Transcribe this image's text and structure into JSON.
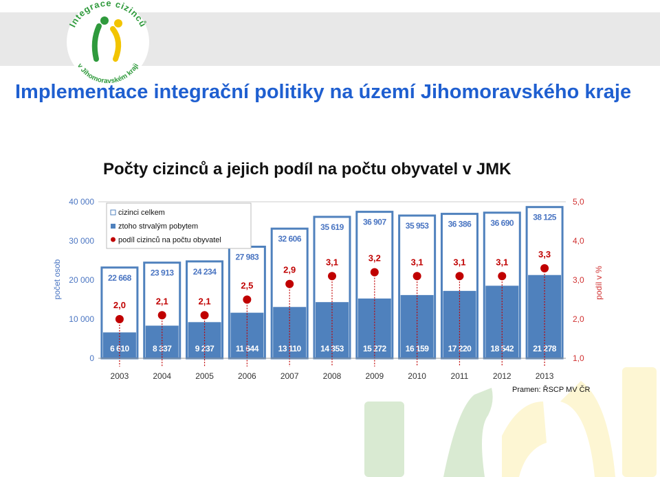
{
  "logo": {
    "text_top": "Integrace cizinců",
    "text_bottom": "v Jihomoravském kraji"
  },
  "colors": {
    "title": "#1f5fd0",
    "bar_total": "#ffffff",
    "bar_permanent": "#4f81bd",
    "bar_border": "#4f81bd",
    "share_marker": "#c00000",
    "axis_text": "#4a75c2",
    "right_axis_text": "#d03030",
    "watermark_green": "#d9ead2",
    "watermark_yellow": "#fdf6d3"
  },
  "page": {
    "title": "Implementace integrační politiky na území Jihomoravského kraje",
    "subtitle": "Počty cizinců a jejich podíl na počtu obyvatel v JMK"
  },
  "chart_data": {
    "type": "bar",
    "categories": [
      "2003",
      "2004",
      "2005",
      "2006",
      "2007",
      "2008",
      "2009",
      "2010",
      "2011",
      "2012",
      "2013"
    ],
    "series": [
      {
        "name": "cizinci celkem",
        "values": [
          22668,
          23913,
          24234,
          27983,
          32606,
          35619,
          36907,
          35953,
          36386,
          36690,
          38125
        ],
        "labels": [
          "22 668",
          "23 913",
          "24 234",
          "27 983",
          "32 606",
          "35 619",
          "36 907",
          "35 953",
          "36 386",
          "36 690",
          "38 125"
        ]
      },
      {
        "name": "ztoho strvalým pobytem",
        "values": [
          6610,
          8337,
          9237,
          11644,
          13110,
          14353,
          15272,
          16159,
          17220,
          18542,
          21278
        ],
        "labels": [
          "6 610",
          "8 337",
          "9 237",
          "11 644",
          "13 110",
          "14 353",
          "15 272",
          "16 159",
          "17 220",
          "18 542",
          "21 278"
        ]
      },
      {
        "name": "podíl cizinců na počtu obyvatel",
        "axis": "right",
        "values": [
          2.0,
          2.1,
          2.1,
          2.5,
          2.9,
          3.1,
          3.2,
          3.1,
          3.1,
          3.1,
          3.3
        ],
        "labels": [
          "2,0",
          "2,1",
          "2,1",
          "2,5",
          "2,9",
          "3,1",
          "3,2",
          "3,1",
          "3,1",
          "3,1",
          "3,3"
        ]
      }
    ],
    "ylabel": "počet osob",
    "y2label": "podíl v %",
    "ylim": [
      0,
      40000
    ],
    "y2lim": [
      1.0,
      5.0
    ],
    "yticks": [
      "0",
      "10 000",
      "20 000",
      "30 000",
      "40 000"
    ],
    "y2ticks": [
      "1,0",
      "2,0",
      "3,0",
      "4,0",
      "5,0"
    ],
    "legend_position": "top-left",
    "source": "Pramen: ŘSCP MV ČR"
  }
}
